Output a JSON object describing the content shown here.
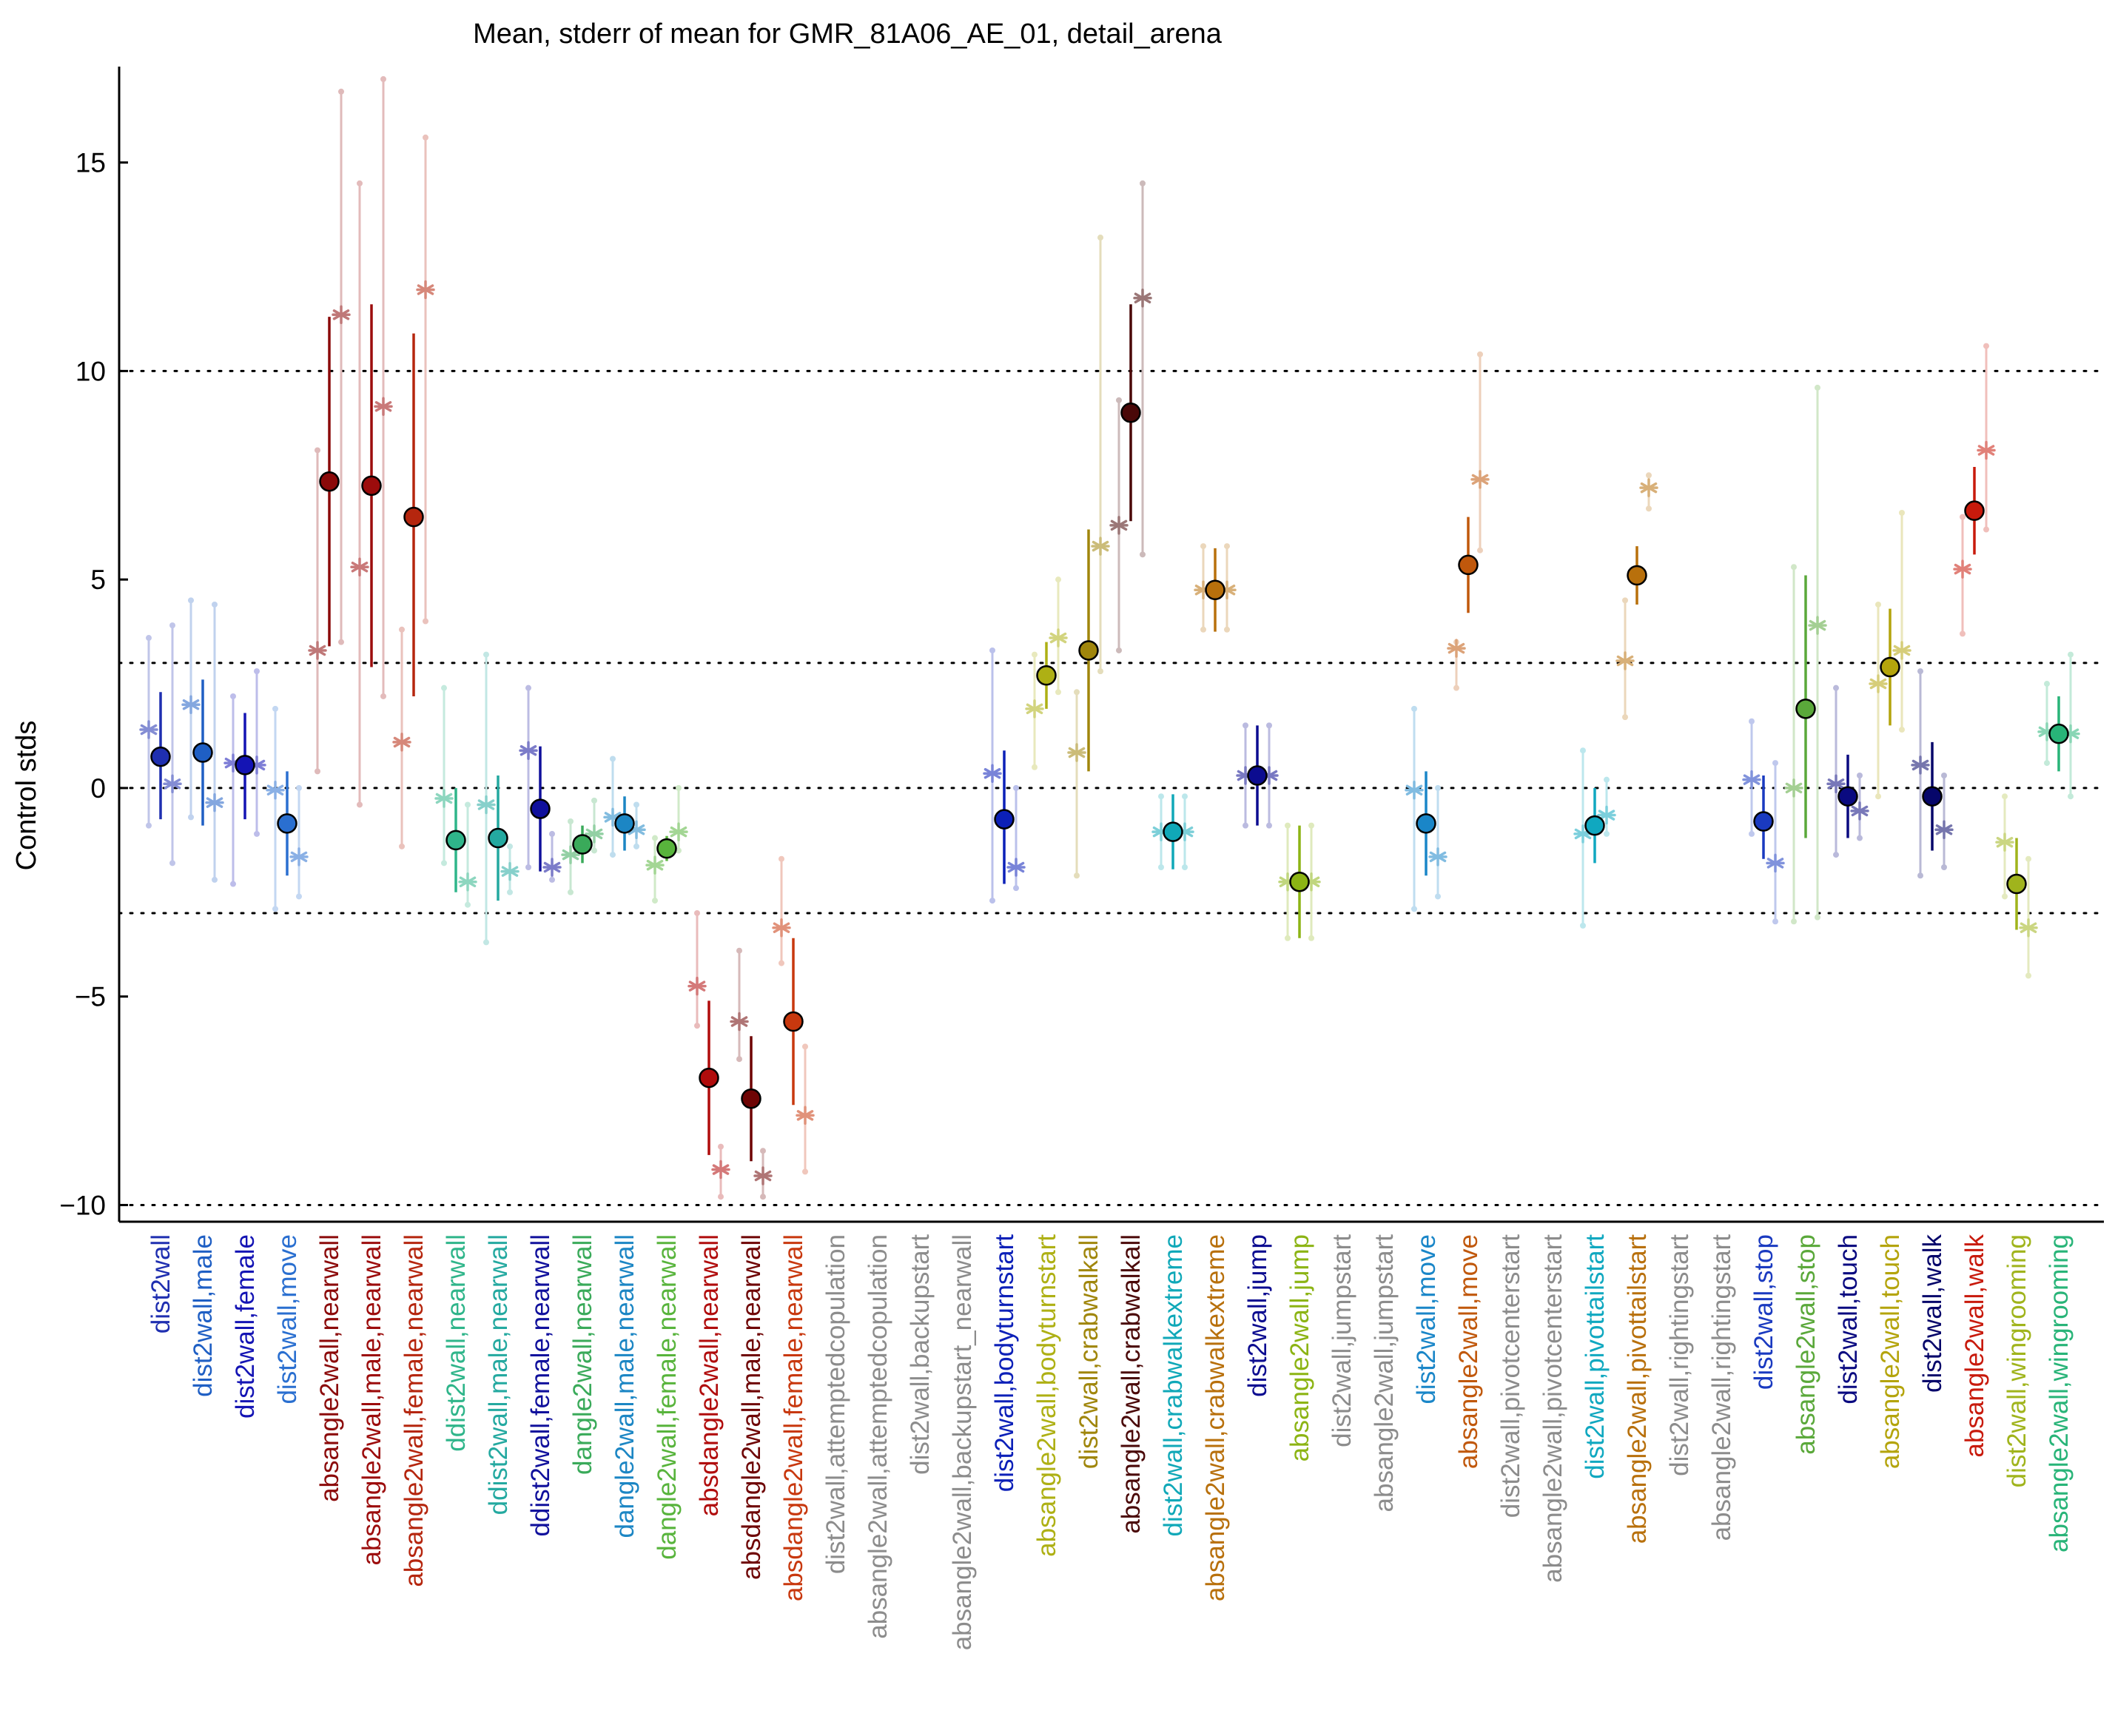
{
  "chart_data": {
    "type": "scatter",
    "title": "Mean, stderr of mean for GMR_81A06_AE_01, detail_arena",
    "ylabel": "Control stds",
    "xlabel": "",
    "ylim": [
      -10.4,
      17.3
    ],
    "yticks": [
      -10,
      -5,
      0,
      5,
      10,
      15
    ],
    "ytick_labels": [
      "−10",
      "−5",
      "0",
      "5",
      "10",
      "15"
    ],
    "reference_lines": [
      -10,
      -3,
      0,
      3,
      10
    ],
    "grid": false,
    "categories": [
      {
        "label": "dist2wall",
        "color": "#1f2fb0",
        "mean": 0.75,
        "err_lo": -0.75,
        "err_hi": 2.3,
        "male": 1.4,
        "female": 0.1,
        "spread": [
          -0.9,
          3.6,
          -1.8,
          3.9
        ]
      },
      {
        "label": "dist2wall,male",
        "color": "#1f5fc4",
        "mean": 0.85,
        "err_lo": -0.9,
        "err_hi": 2.6,
        "male": 2.0,
        "female": -0.35,
        "spread": [
          -0.7,
          4.5,
          -2.2,
          4.4
        ]
      },
      {
        "label": "dist2wall,female",
        "color": "#1414b4",
        "mean": 0.55,
        "err_lo": -0.75,
        "err_hi": 1.8,
        "male": 0.6,
        "female": 0.55,
        "spread": [
          -2.3,
          2.2,
          -1.1,
          2.8
        ]
      },
      {
        "label": "dist2wall,move",
        "color": "#2a6fd0",
        "mean": -0.85,
        "err_lo": -2.1,
        "err_hi": 0.4,
        "male": -0.05,
        "female": -1.65,
        "spread": [
          -2.9,
          1.9,
          -2.6,
          0.0
        ]
      },
      {
        "label": "absangle2wall,nearwall",
        "color": "#8b0a0a",
        "mean": 7.35,
        "err_lo": 3.4,
        "err_hi": 11.3,
        "male": 3.3,
        "female": 11.35,
        "spread": [
          0.4,
          8.1,
          3.5,
          16.7
        ]
      },
      {
        "label": "absangle2wall,male,nearwall",
        "color": "#9c0c0c",
        "mean": 7.25,
        "err_lo": 2.9,
        "err_hi": 11.6,
        "male": 5.3,
        "female": 9.15,
        "spread": [
          -0.4,
          14.5,
          2.2,
          17.0
        ]
      },
      {
        "label": "absangle2wall,female,nearwall",
        "color": "#b5260e",
        "mean": 6.5,
        "err_lo": 2.2,
        "err_hi": 10.9,
        "male": 1.1,
        "female": 11.95,
        "spread": [
          -1.4,
          3.8,
          4.0,
          15.6
        ]
      },
      {
        "label": "ddist2wall,nearwall",
        "color": "#2fb58a",
        "mean": -1.25,
        "err_lo": -2.5,
        "err_hi": 0.0,
        "male": -0.25,
        "female": -2.25,
        "spread": [
          -1.8,
          2.4,
          -2.8,
          -0.4
        ]
      },
      {
        "label": "ddist2wall,male,nearwall",
        "color": "#24a9a0",
        "mean": -1.2,
        "err_lo": -2.7,
        "err_hi": 0.3,
        "male": -0.4,
        "female": -2.0,
        "spread": [
          -3.7,
          3.2,
          -2.5,
          -1.4
        ]
      },
      {
        "label": "ddist2wall,female,nearwall",
        "color": "#10109c",
        "mean": -0.5,
        "err_lo": -2.0,
        "err_hi": 1.0,
        "male": 0.9,
        "female": -1.9,
        "spread": [
          -1.9,
          2.4,
          -2.2,
          -1.1
        ]
      },
      {
        "label": "dangle2wall,nearwall",
        "color": "#3aaa5a",
        "mean": -1.35,
        "err_lo": -1.8,
        "err_hi": -0.9,
        "male": -1.6,
        "female": -1.1,
        "spread": [
          -2.5,
          -0.8,
          -1.5,
          -0.3
        ]
      },
      {
        "label": "dangle2wall,male,nearwall",
        "color": "#1c86c4",
        "mean": -0.85,
        "err_lo": -1.5,
        "err_hi": -0.2,
        "male": -0.7,
        "female": -1.0,
        "spread": [
          -1.6,
          0.7,
          -1.4,
          -0.4
        ]
      },
      {
        "label": "dangle2wall,female,nearwall",
        "color": "#58b43c",
        "mean": -1.45,
        "err_lo": -1.75,
        "err_hi": -1.15,
        "male": -1.85,
        "female": -1.05,
        "spread": [
          -2.7,
          -1.2,
          -1.5,
          0.0
        ]
      },
      {
        "label": "absdangle2wall,nearwall",
        "color": "#b00c0c",
        "mean": -6.95,
        "err_lo": -8.8,
        "err_hi": -5.1,
        "male": -4.75,
        "female": -9.15,
        "spread": [
          -5.7,
          -3.0,
          -9.8,
          -8.6
        ]
      },
      {
        "label": "absdangle2wall,male,nearwall",
        "color": "#6e0404",
        "mean": -7.45,
        "err_lo": -8.95,
        "err_hi": -5.95,
        "male": -5.6,
        "female": -9.3,
        "spread": [
          -6.5,
          -3.9,
          -9.8,
          -8.7
        ]
      },
      {
        "label": "absdangle2wall,female,nearwall",
        "color": "#c8380e",
        "mean": -5.6,
        "err_lo": -7.6,
        "err_hi": -3.6,
        "male": -3.35,
        "female": -7.85,
        "spread": [
          -4.2,
          -1.7,
          -9.2,
          -6.2
        ]
      },
      {
        "label": "dist2wall,attemptedcopulation",
        "color": "#8c8c8c"
      },
      {
        "label": "absangle2wall,attemptedcopulation",
        "color": "#8c8c8c"
      },
      {
        "label": "dist2wall,backupstart",
        "color": "#8c8c8c"
      },
      {
        "label": "absangle2wall,backupstart_nearwall",
        "color": "#8c8c8c"
      },
      {
        "label": "dist2wall,bodyturnstart",
        "color": "#0c20b8",
        "mean": -0.75,
        "err_lo": -2.3,
        "err_hi": 0.9,
        "male": 0.35,
        "female": -1.9,
        "spread": [
          -2.7,
          3.3,
          -2.4,
          0.0
        ]
      },
      {
        "label": "absangle2wall,bodyturnstart",
        "color": "#aeb014",
        "mean": 2.7,
        "err_lo": 1.9,
        "err_hi": 3.5,
        "male": 1.9,
        "female": 3.6,
        "spread": [
          0.5,
          3.2,
          2.3,
          5.0
        ]
      },
      {
        "label": "dist2wall,crabwalkall",
        "color": "#a0860c",
        "mean": 3.3,
        "err_lo": 0.4,
        "err_hi": 6.2,
        "male": 0.85,
        "female": 5.8,
        "spread": [
          -2.1,
          2.3,
          2.8,
          13.2
        ]
      },
      {
        "label": "absangle2wall,crabwalkall",
        "color": "#4a0808",
        "mean": 9.0,
        "err_lo": 6.4,
        "err_hi": 11.6,
        "male": 6.3,
        "female": 11.75,
        "spread": [
          3.3,
          9.3,
          5.6,
          14.5
        ]
      },
      {
        "label": "dist2wall,crabwalkextreme",
        "color": "#10a8b8",
        "mean": -1.05,
        "err_lo": -1.95,
        "err_hi": -0.15,
        "male": -1.05,
        "female": -1.05,
        "spread": [
          -1.9,
          -0.2,
          -1.9,
          -0.2
        ]
      },
      {
        "label": "absangle2wall,crabwalkextreme",
        "color": "#b8700c",
        "mean": 4.75,
        "err_lo": 3.75,
        "err_hi": 5.75,
        "male": 4.75,
        "female": 4.75,
        "spread": [
          3.8,
          5.8,
          3.8,
          5.8
        ]
      },
      {
        "label": "dist2wall,jump",
        "color": "#0c0c90",
        "mean": 0.3,
        "err_lo": -0.9,
        "err_hi": 1.5,
        "male": 0.3,
        "female": 0.3,
        "spread": [
          -0.9,
          1.5,
          -0.9,
          1.5
        ]
      },
      {
        "label": "absangle2wall,jump",
        "color": "#8cb414",
        "mean": -2.25,
        "err_lo": -3.6,
        "err_hi": -0.9,
        "male": -2.25,
        "female": -2.25,
        "spread": [
          -3.6,
          -0.9,
          -3.6,
          -0.9
        ]
      },
      {
        "label": "dist2wall,jumpstart",
        "color": "#8c8c8c"
      },
      {
        "label": "absangle2wall,jumpstart",
        "color": "#8c8c8c"
      },
      {
        "label": "dist2wall,move",
        "color": "#1a86c8",
        "mean": -0.85,
        "err_lo": -2.1,
        "err_hi": 0.4,
        "male": -0.05,
        "female": -1.65,
        "spread": [
          -2.9,
          1.9,
          -2.6,
          0.0
        ]
      },
      {
        "label": "absangle2wall,move",
        "color": "#c0580c",
        "mean": 5.35,
        "err_lo": 4.2,
        "err_hi": 6.5,
        "male": 3.35,
        "female": 7.4,
        "spread": [
          2.4,
          3.5,
          5.7,
          10.4
        ]
      },
      {
        "label": "dist2wall,pivotcenterstart",
        "color": "#8c8c8c"
      },
      {
        "label": "absangle2wall,pivotcenterstart",
        "color": "#8c8c8c"
      },
      {
        "label": "dist2wall,pivottailstart",
        "color": "#10a8c0",
        "mean": -0.9,
        "err_lo": -1.8,
        "err_hi": 0.0,
        "male": -1.1,
        "female": -0.65,
        "spread": [
          -3.3,
          0.9,
          -1.1,
          0.2
        ]
      },
      {
        "label": "absangle2wall,pivottailstart",
        "color": "#b8700c",
        "mean": 5.1,
        "err_lo": 4.4,
        "err_hi": 5.8,
        "male": 3.05,
        "female": 7.2,
        "spread": [
          1.7,
          4.5,
          6.7,
          7.5
        ]
      },
      {
        "label": "dist2wall,rightingstart",
        "color": "#8c8c8c"
      },
      {
        "label": "absangle2wall,rightingstart",
        "color": "#8c8c8c"
      },
      {
        "label": "dist2wall,stop",
        "color": "#1a3ac0",
        "mean": -0.8,
        "err_lo": -1.7,
        "err_hi": 0.3,
        "male": 0.2,
        "female": -1.8,
        "spread": [
          -1.1,
          1.6,
          -3.2,
          0.6
        ]
      },
      {
        "label": "absangle2wall,stop",
        "color": "#5aa83a",
        "mean": 1.9,
        "err_lo": -1.2,
        "err_hi": 5.1,
        "male": 0.0,
        "female": 3.9,
        "spread": [
          -3.2,
          5.3,
          -3.1,
          9.6
        ]
      },
      {
        "label": "dist2wall,touch",
        "color": "#0a0a80",
        "mean": -0.2,
        "err_lo": -1.2,
        "err_hi": 0.8,
        "male": 0.1,
        "female": -0.55,
        "spread": [
          -1.6,
          2.4,
          -1.2,
          0.3
        ]
      },
      {
        "label": "absangle2wall,touch",
        "color": "#b4a40c",
        "mean": 2.9,
        "err_lo": 1.5,
        "err_hi": 4.3,
        "male": 2.5,
        "female": 3.3,
        "spread": [
          -0.2,
          4.4,
          1.4,
          6.6
        ]
      },
      {
        "label": "dist2wall,walk",
        "color": "#06066a",
        "mean": -0.2,
        "err_lo": -1.5,
        "err_hi": 1.1,
        "male": 0.55,
        "female": -1.0,
        "spread": [
          -2.1,
          2.8,
          -1.9,
          0.3
        ]
      },
      {
        "label": "absangle2wall,walk",
        "color": "#c81a0c",
        "mean": 6.65,
        "err_lo": 5.6,
        "err_hi": 7.7,
        "male": 5.25,
        "female": 8.1,
        "spread": [
          3.7,
          6.5,
          6.2,
          10.6
        ]
      },
      {
        "label": "dist2wall,wingrooming",
        "color": "#a0b41c",
        "mean": -2.3,
        "err_lo": -3.4,
        "err_hi": -1.2,
        "male": -1.3,
        "female": -3.35,
        "spread": [
          -2.6,
          -0.2,
          -4.5,
          -1.7
        ]
      },
      {
        "label": "absangle2wall,wingrooming",
        "color": "#28b478",
        "mean": 1.3,
        "err_lo": 0.4,
        "err_hi": 2.2,
        "male": 1.35,
        "female": 1.3,
        "spread": [
          0.6,
          2.5,
          -0.2,
          3.2
        ]
      }
    ]
  }
}
